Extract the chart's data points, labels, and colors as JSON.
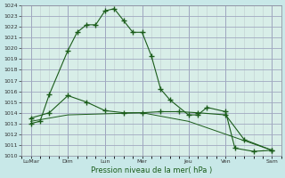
{
  "background_color": "#c8e8e8",
  "plot_bg_color": "#d8eee8",
  "grid_color_major": "#a0a8c0",
  "grid_color_minor": "#c0ccd0",
  "line_color": "#1a5c1a",
  "ylabel": "Pression niveau de la mer( hPa )",
  "ylim": [
    1010,
    1024
  ],
  "yticks": [
    1010,
    1011,
    1012,
    1013,
    1014,
    1015,
    1016,
    1017,
    1018,
    1019,
    1020,
    1021,
    1022,
    1023,
    1024
  ],
  "xlim": [
    0,
    28
  ],
  "x_major_ticks": [
    1,
    5,
    9,
    13,
    18,
    22,
    27
  ],
  "x_major_labels": [
    "LuMar",
    "Dim",
    "Lun",
    "Mer",
    "Jeu",
    "Ven",
    "Sam"
  ],
  "series1_x": [
    1,
    2,
    3,
    5,
    6,
    7,
    8,
    9,
    10,
    11,
    12,
    13,
    14,
    15,
    16,
    18,
    19,
    20,
    22,
    23,
    25,
    27
  ],
  "series1_y": [
    1013.0,
    1013.2,
    1015.7,
    1019.8,
    1021.5,
    1022.2,
    1022.2,
    1023.5,
    1023.7,
    1022.6,
    1021.5,
    1021.5,
    1019.3,
    1016.2,
    1015.2,
    1013.8,
    1013.8,
    1014.5,
    1014.1,
    1010.7,
    1010.4,
    1010.5
  ],
  "series2_x": [
    1,
    3,
    5,
    7,
    9,
    11,
    13,
    15,
    17,
    19,
    22,
    24,
    27
  ],
  "series2_y": [
    1013.5,
    1014.0,
    1015.6,
    1015.0,
    1014.2,
    1014.0,
    1014.0,
    1014.1,
    1014.1,
    1014.0,
    1013.8,
    1011.5,
    1010.5
  ],
  "series3_x": [
    1,
    5,
    9,
    13,
    18,
    22,
    27
  ],
  "series3_y": [
    1013.2,
    1013.8,
    1013.9,
    1014.0,
    1013.2,
    1012.0,
    1010.5
  ]
}
